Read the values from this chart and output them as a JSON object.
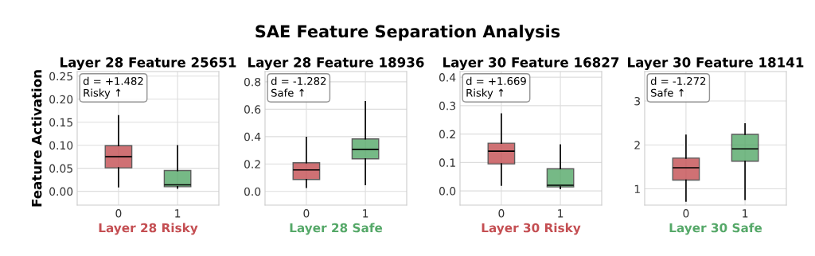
{
  "chart_data": [
    {
      "type": "box",
      "title": "Layer 28 Feature 25651",
      "xlabel": "Layer 28 Risky",
      "ylabel": "Feature Activation",
      "categories": [
        "0",
        "1"
      ],
      "colors": [
        "#c44e52",
        "#55a868"
      ],
      "boxes": [
        {
          "low": 0.01,
          "q1": 0.051,
          "median": 0.075,
          "q3": 0.099,
          "high": 0.164
        },
        {
          "low": 0.007,
          "q1": 0.01,
          "median": 0.014,
          "q3": 0.045,
          "high": 0.099
        }
      ],
      "ylim": [
        -0.03,
        0.26
      ],
      "yticks": [
        {
          "value": 0,
          "label": "0.00"
        },
        {
          "value": 0.05,
          "label": "0.05"
        },
        {
          "value": 0.1,
          "label": "0.10"
        },
        {
          "value": 0.15,
          "label": "0.15"
        },
        {
          "value": 0.2,
          "label": "0.20"
        },
        {
          "value": 0.25,
          "label": "0.25"
        }
      ],
      "grid": true,
      "annotations": [
        "SAE Feature Separation Analysis",
        "d = +1.482\nRisky ↑"
      ]
    },
    {
      "type": "box",
      "title": "Layer 28 Feature 18936",
      "xlabel": "Layer 28 Safe",
      "categories": [
        "0",
        "1"
      ],
      "colors": [
        "#c44e52",
        "#55a868"
      ],
      "boxes": [
        {
          "low": 0.03,
          "q1": 0.087,
          "median": 0.157,
          "q3": 0.209,
          "high": 0.394
        },
        {
          "low": 0.05,
          "q1": 0.238,
          "median": 0.307,
          "q3": 0.383,
          "high": 0.655
        }
      ],
      "ylim": [
        -0.1,
        0.875
      ],
      "yticks": [
        {
          "value": 0,
          "label": "0.0"
        },
        {
          "value": 0.2,
          "label": "0.2"
        },
        {
          "value": 0.4,
          "label": "0.4"
        },
        {
          "value": 0.6,
          "label": "0.6"
        },
        {
          "value": 0.8,
          "label": "0.8"
        }
      ],
      "grid": true,
      "annotations": [
        "d = -1.282\nSafe ↑"
      ]
    },
    {
      "type": "box",
      "title": "Layer 30 Feature 16827",
      "xlabel": "Layer 30 Risky",
      "categories": [
        "0",
        "1"
      ],
      "colors": [
        "#c44e52",
        "#55a868"
      ],
      "boxes": [
        {
          "low": 0.02,
          "q1": 0.095,
          "median": 0.14,
          "q3": 0.168,
          "high": 0.271
        },
        {
          "low": 0.008,
          "q1": 0.014,
          "median": 0.02,
          "q3": 0.078,
          "high": 0.162
        }
      ],
      "ylim": [
        -0.05,
        0.42
      ],
      "yticks": [
        {
          "value": 0,
          "label": "0.0"
        },
        {
          "value": 0.1,
          "label": "0.1"
        },
        {
          "value": 0.2,
          "label": "0.2"
        },
        {
          "value": 0.3,
          "label": "0.3"
        },
        {
          "value": 0.4,
          "label": "0.4"
        }
      ],
      "grid": true,
      "annotations": [
        "d = +1.669\nRisky ↑"
      ]
    },
    {
      "type": "box",
      "title": "Layer 30 Feature 18141",
      "xlabel": "Layer 30 Safe",
      "categories": [
        "0",
        "1"
      ],
      "colors": [
        "#c44e52",
        "#55a868"
      ],
      "boxes": [
        {
          "low": 0.72,
          "q1": 1.2,
          "median": 1.48,
          "q3": 1.7,
          "high": 2.22
        },
        {
          "low": 0.76,
          "q1": 1.63,
          "median": 1.91,
          "q3": 2.24,
          "high": 2.48
        }
      ],
      "ylim": [
        0.63,
        3.67
      ],
      "yticks": [
        1,
        2,
        3
      ],
      "grid": true,
      "annotations": [
        "d = -1.272\nSafe ↑"
      ]
    }
  ]
}
